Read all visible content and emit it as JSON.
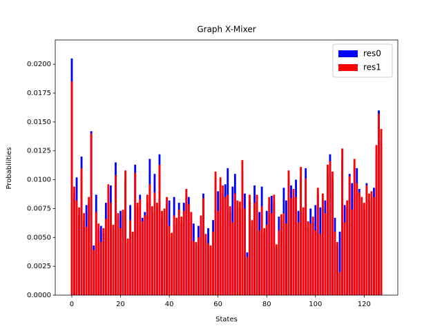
{
  "chart_data": {
    "type": "bar",
    "title": "Graph X-Mixer",
    "x_label": "States",
    "y_label": "Probabilities",
    "x": [
      0,
      1,
      2,
      3,
      4,
      5,
      6,
      7,
      8,
      9,
      10,
      11,
      12,
      13,
      14,
      15,
      16,
      17,
      18,
      19,
      20,
      21,
      22,
      23,
      24,
      25,
      26,
      27,
      28,
      29,
      30,
      31,
      32,
      33,
      34,
      35,
      36,
      37,
      38,
      39,
      40,
      41,
      42,
      43,
      44,
      45,
      46,
      47,
      48,
      49,
      50,
      51,
      52,
      53,
      54,
      55,
      56,
      57,
      58,
      59,
      60,
      61,
      62,
      63,
      64,
      65,
      66,
      67,
      68,
      69,
      70,
      71,
      72,
      73,
      74,
      75,
      76,
      77,
      78,
      79,
      80,
      81,
      82,
      83,
      84,
      85,
      86,
      87,
      88,
      89,
      90,
      91,
      92,
      93,
      94,
      95,
      96,
      97,
      98,
      99,
      100,
      101,
      102,
      103,
      104,
      105,
      106,
      107,
      108,
      109,
      110,
      111,
      112,
      113,
      114,
      115,
      116,
      117,
      118,
      119,
      120,
      121,
      122,
      123,
      124,
      125,
      126,
      127
    ],
    "series": [
      {
        "name": "res0",
        "color": "#0000ff",
        "values": [
          0.0205,
          0.0088,
          0.0102,
          0.007,
          0.012,
          0.0065,
          0.0078,
          0.008,
          0.0142,
          0.0043,
          0.0087,
          0.0058,
          0.006,
          0.0054,
          0.008,
          0.009,
          0.0095,
          0.0057,
          0.0115,
          0.0066,
          0.0073,
          0.0069,
          0.01,
          0.0045,
          0.0078,
          0.0051,
          0.0113,
          0.0076,
          0.0087,
          0.0067,
          0.0072,
          0.008,
          0.0118,
          0.0072,
          0.0105,
          0.0075,
          0.0122,
          0.0068,
          0.007,
          0.0079,
          0.0082,
          0.005,
          0.0085,
          0.0062,
          0.008,
          0.0063,
          0.008,
          0.0086,
          0.0085,
          0.0067,
          0.0062,
          0.0043,
          0.006,
          0.0064,
          0.0088,
          0.0049,
          0.0058,
          0.004,
          0.0065,
          0.01,
          0.009,
          0.0095,
          0.0088,
          0.0096,
          0.011,
          0.0072,
          0.0094,
          0.0105,
          0.0076,
          0.0075,
          0.0108,
          0.0088,
          0.0037,
          0.0081,
          0.006,
          0.0095,
          0.0081,
          0.0072,
          0.0094,
          0.0054,
          0.0073,
          0.0079,
          0.0086,
          0.0081,
          0.0041,
          0.0068,
          0.0065,
          0.0093,
          0.0082,
          0.01,
          0.0095,
          0.0086,
          0.01,
          0.0073,
          0.0103,
          0.0071,
          0.011,
          0.0059,
          0.0075,
          0.0063,
          0.0078,
          0.0087,
          0.0076,
          0.0082,
          0.0082,
          0.0105,
          0.0122,
          0.01,
          0.0067,
          0.0043,
          0.0055,
          0.0118,
          0.0078,
          0.0076,
          0.0105,
          0.0097,
          0.011,
          0.011,
          0.0092,
          0.0079,
          0.0074,
          0.0097,
          0.0082,
          0.0084,
          0.0093,
          0.0121,
          0.016,
          0.0134
        ]
      },
      {
        "name": "res1",
        "color": "#ff0000",
        "values": [
          0.0185,
          0.0094,
          0.0082,
          0.0076,
          0.011,
          0.0071,
          0.0059,
          0.0085,
          0.014,
          0.0039,
          0.0072,
          0.0062,
          0.0046,
          0.0058,
          0.0066,
          0.0096,
          0.008,
          0.0061,
          0.0104,
          0.0071,
          0.0058,
          0.0074,
          0.0108,
          0.0049,
          0.0065,
          0.0055,
          0.0106,
          0.008,
          0.0083,
          0.0064,
          0.0069,
          0.0087,
          0.0096,
          0.0077,
          0.0089,
          0.008,
          0.0113,
          0.0073,
          0.0075,
          0.0085,
          0.006,
          0.0054,
          0.0069,
          0.0067,
          0.0074,
          0.0068,
          0.0073,
          0.0092,
          0.0079,
          0.0072,
          0.0047,
          0.0046,
          0.005,
          0.0069,
          0.0084,
          0.0053,
          0.0045,
          0.0043,
          0.0055,
          0.0107,
          0.0073,
          0.0102,
          0.0095,
          0.0085,
          0.0087,
          0.0077,
          0.0063,
          0.0088,
          0.0082,
          0.0081,
          0.0117,
          0.0075,
          0.0033,
          0.0087,
          0.0065,
          0.008,
          0.0087,
          0.0056,
          0.0077,
          0.0058,
          0.0061,
          0.0085,
          0.0071,
          0.0087,
          0.0044,
          0.0056,
          0.007,
          0.0071,
          0.0062,
          0.0108,
          0.0084,
          0.0092,
          0.0085,
          0.0063,
          0.0111,
          0.0076,
          0.0101,
          0.0064,
          0.0062,
          0.0068,
          0.0056,
          0.0093,
          0.0053,
          0.0088,
          0.0071,
          0.0113,
          0.0116,
          0.0107,
          0.0055,
          0.0046,
          0.002,
          0.0127,
          0.0063,
          0.0082,
          0.0103,
          0.0074,
          0.0118,
          0.0097,
          0.0089,
          0.0085,
          0.008,
          0.0095,
          0.0088,
          0.009,
          0.0085,
          0.013,
          0.0157,
          0.0144
        ]
      }
    ],
    "xlim": [
      -6.79,
      133.79
    ],
    "xticks": [
      0,
      20,
      40,
      60,
      80,
      100,
      120
    ],
    "ylim": [
      0,
      0.0221
    ],
    "yticks": [
      {
        "value": 0,
        "label": "0.0000"
      },
      0.0025,
      {
        "value": 0.005,
        "label": "0.0050"
      },
      0.0075,
      {
        "value": 0.01,
        "label": "0.0100"
      },
      0.0125,
      {
        "value": 0.015,
        "label": "0.0150"
      },
      0.0175,
      {
        "value": 0.02,
        "label": "0.0200"
      }
    ],
    "legend": "upper right"
  }
}
